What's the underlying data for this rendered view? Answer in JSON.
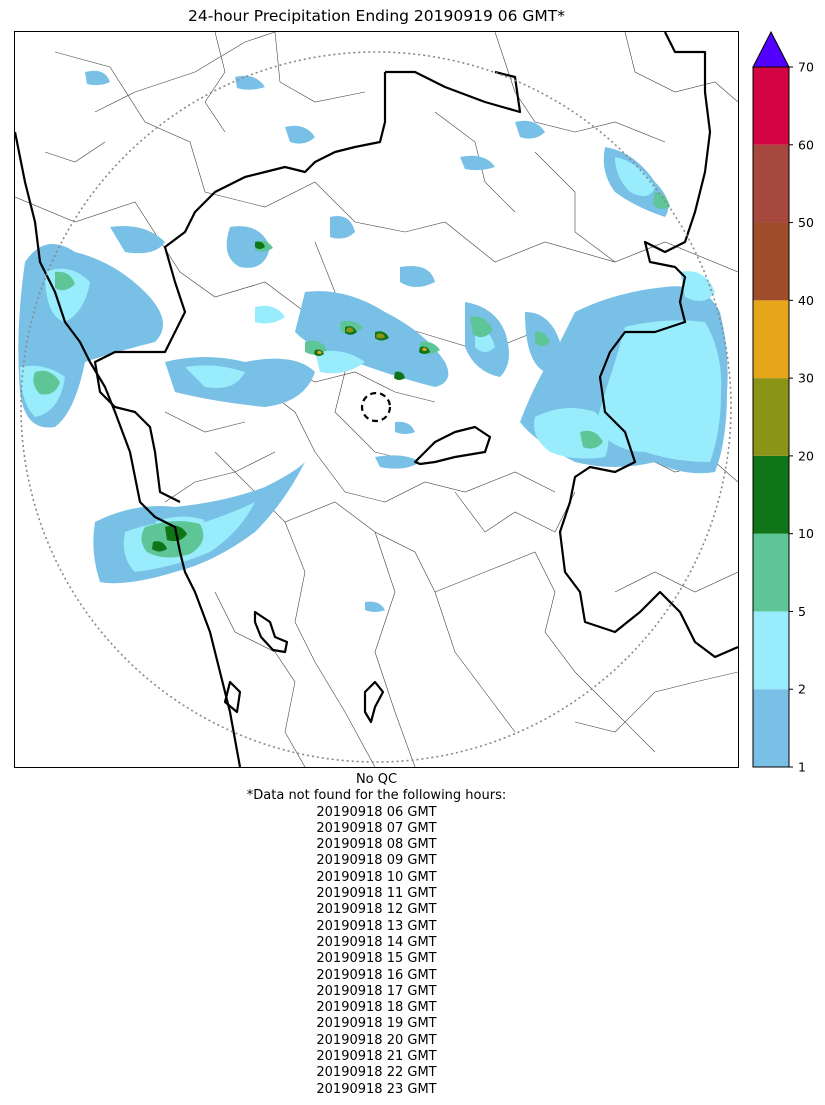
{
  "title": "24-hour Precipitation Ending 20190919 06 GMT*",
  "legend": {
    "levels": [
      1,
      2,
      5,
      10,
      20,
      30,
      40,
      50,
      60,
      70
    ],
    "colors": [
      "#78c0e6",
      "#98ecfc",
      "#5ec596",
      "#107418",
      "#8c9418",
      "#e6a61a",
      "#9e4c2a",
      "#a6483e",
      "#d40444"
    ],
    "extend_color": "#5200ff"
  },
  "map": {
    "radar_range_ring": "dotted",
    "radar_site_marker": "dashed circle"
  },
  "notes": {
    "qc": "No QC",
    "missing_header": "*Data not found for the following hours:",
    "missing_hours": [
      "20190918 06 GMT",
      "20190918 07 GMT",
      "20190918 08 GMT",
      "20190918 09 GMT",
      "20190918 10 GMT",
      "20190918 11 GMT",
      "20190918 12 GMT",
      "20190918 13 GMT",
      "20190918 14 GMT",
      "20190918 15 GMT",
      "20190918 16 GMT",
      "20190918 17 GMT",
      "20190918 18 GMT",
      "20190918 19 GMT",
      "20190918 20 GMT",
      "20190918 21 GMT",
      "20190918 22 GMT",
      "20190918 23 GMT"
    ]
  }
}
